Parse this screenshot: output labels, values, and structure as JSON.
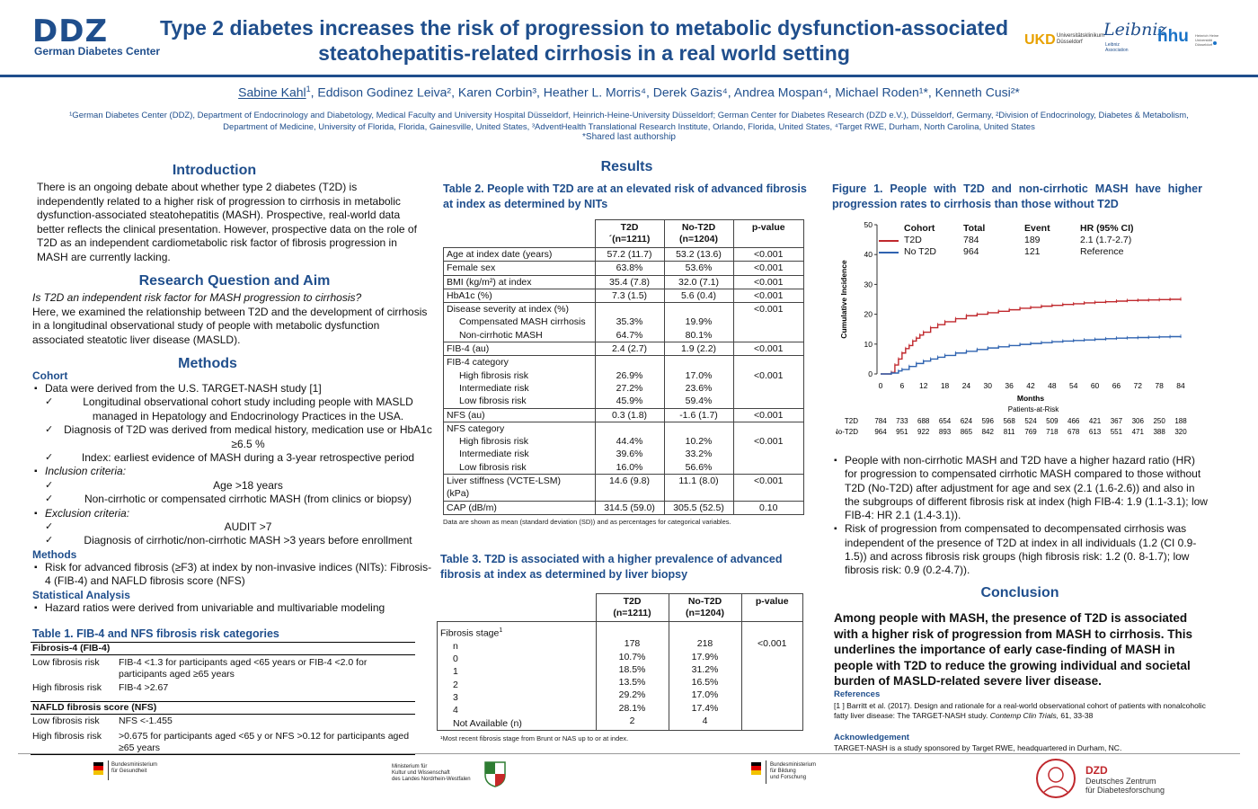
{
  "header": {
    "logo": "DDZ",
    "logo_sub": "German Diabetes Center",
    "title_line1": "Type 2 diabetes increases the risk of progression to metabolic dysfunction-associated",
    "title_line2": "steatohepatitis-related cirrhosis in a real world setting",
    "ukd": "UKD",
    "ukd_sub1": "Universitätsklinikum",
    "ukd_sub2": "Düsseldorf",
    "leibniz": "Leibniz",
    "leibniz_sub1": "Leibniz",
    "leibniz_sub2": "Association",
    "hhu": "hhu",
    "hhu_sub1": "Heinrich Heine",
    "hhu_sub2": "Universität",
    "hhu_sub3": "Düsseldorf",
    "authors_first": "Sabine Kahl",
    "authors_rest": ", Eddison Godinez Leiva², Karen Corbin³, Heather L. Morris⁴, Derek Gazis⁴, Andrea Mospan⁴, Michael Roden¹*, Kenneth Cusi²*",
    "authors_first_sup": "1",
    "affil_line1": "¹German Diabetes Center (DDZ), Department of Endocrinology and Diabetology, Medical Faculty and University Hospital Düsseldorf, Heinrich-Heine-University Düsseldorf; German Center for Diabetes Research (DZD e.V.), Düsseldorf, Germany, ²Division of Endocrinology, Diabetes & Metabolism,",
    "affil_line2": "Department of Medicine, University of Florida, Florida, Gainesville, United States, ³AdventHealth Translational Research Institute, Orlando, Florida, United States, ⁴Target RWE, Durham, North Carolina, United States",
    "shared": "*Shared last authorship"
  },
  "intro": {
    "heading": "Introduction",
    "text": "There is an ongoing debate about whether type 2 diabetes (T2D) is independently related to a higher risk of progression to cirrhosis in metabolic dysfunction-associated steatohepatitis (MASH). Prospective, real-world data better reflects the clinical presentation. However, prospective data on the role of T2D as an independent cardiometabolic risk factor of fibrosis progression in MASH are currently lacking."
  },
  "rq": {
    "heading": "Research Question and Aim",
    "question": "Is T2D an independent risk factor for MASH progression to cirrhosis?",
    "text": "Here, we examined the relationship between T2D and the development of cirrhosis in a longitudinal observational study of people with metabolic dysfunction associated steatotic liver disease (MASLD)."
  },
  "methods": {
    "heading": "Methods",
    "cohort_title": "Cohort",
    "cohort_b1": "Data were derived from the U.S. TARGET-NASH study [1]",
    "cohort_c1": "Longitudinal observational cohort study including people with MASLD managed in Hepatology and Endocrinology Practices in the USA.",
    "cohort_c2": "Diagnosis of T2D was derived from medical history, medication use or HbA1c ≥6.5 %",
    "cohort_c3": "Index: earliest evidence of MASH during a 3-year retrospective period",
    "inclusion": "Inclusion criteria:",
    "inc_c1": "Age >18 years",
    "inc_c2": "Non-cirrhotic or compensated cirrhotic MASH (from clinics or biopsy)",
    "exclusion": "Exclusion criteria:",
    "exc_c1": "AUDIT >7",
    "exc_c2": "Diagnosis of cirrhotic/non-cirrhotic MASH >3 years before enrollment",
    "methods_title": "Methods",
    "methods_b1": "Risk for advanced fibrosis (≥F3) at index by non-invasive indices  (NITs): Fibrosis-4 (FIB-4) and NAFLD fibrosis score (NFS)",
    "stat_title": "Statistical Analysis",
    "stat_b1": "Hazard ratios were derived from univariable and multivariable modeling"
  },
  "table1": {
    "caption": "Table 1. FIB-4 and NFS fibrosis risk categories",
    "fib4_head": "Fibrosis-4 (FIB-4)",
    "fib4_low_l": "Low fibrosis risk",
    "fib4_low_v": "FIB-4 <1.3 for participants aged <65 years or FIB-4 <2.0 for participants aged ≥65 years",
    "fib4_high_l": "High fibrosis risk",
    "fib4_high_v": "FIB-4 >2.67",
    "nfs_head": "NAFLD fibrosis score (NFS)",
    "nfs_low_l": "Low fibrosis risk",
    "nfs_low_v": "NFS <-1.455",
    "nfs_high_l": "High fibrosis risk",
    "nfs_high_v": ">0.675 for participants aged <65 y or NFS >0.12 for participants aged ≥65 years"
  },
  "results": {
    "heading": "Results"
  },
  "table2": {
    "caption": "Table 2. People with T2D are at an elevated risk of advanced fibrosis at index as determined by NITs",
    "h_t2d": "T2D",
    "h_t2d_n": "´(n=1211)",
    "h_no": "No-T2D",
    "h_no_n": "(n=1204)",
    "h_p": "p-value",
    "rows": [
      {
        "label": "Age at index date (years)",
        "a": "57.2 (11.7)",
        "b": "53.2 (13.6)",
        "p": "<0.001",
        "ind": false
      },
      {
        "label": "Female sex",
        "a": "63.8%",
        "b": "53.6%",
        "p": "<0.001",
        "ind": false
      },
      {
        "label": "BMI (kg/m²) at index",
        "a": "35.4 (7.8)",
        "b": "32.0 (7.1)",
        "p": "<0.001",
        "ind": false
      },
      {
        "label": "HbA1c (%)",
        "a": "7.3 (1.5)",
        "b": "5.6 (0.4)",
        "p": "<0.001",
        "ind": false
      }
    ],
    "sev_label": "Disease severity at index (%)",
    "sev_p": "<0.001",
    "sev_r1_l": "Compensated MASH cirrhosis",
    "sev_r1_a": "35.3%",
    "sev_r1_b": "19.9%",
    "sev_r2_l": "Non-cirrhotic MASH",
    "sev_r2_a": "64.7%",
    "sev_r2_b": "80.1%",
    "fib4_l": "FIB-4 (au)",
    "fib4_a": "2.4 (2.7)",
    "fib4_b": "1.9 (2.2)",
    "fib4_p": "<0.001",
    "fib4cat_l": "FIB-4 category",
    "fib4cat_p": "<0.001",
    "fib4cat_r1_l": "High fibrosis risk",
    "fib4cat_r1_a": "26.9%",
    "fib4cat_r1_b": "17.0%",
    "fib4cat_r2_l": "Intermediate risk",
    "fib4cat_r2_a": "27.2%",
    "fib4cat_r2_b": "23.6%",
    "fib4cat_r3_l": "Low fibrosis risk",
    "fib4cat_r3_a": "45.9%",
    "fib4cat_r3_b": "59.4%",
    "nfs_l": "NFS (au)",
    "nfs_a": "0.3 (1.8)",
    "nfs_b": "-1.6 (1.7)",
    "nfs_p": "<0.001",
    "nfscat_l": "NFS category",
    "nfscat_p": "<0.001",
    "nfscat_r1_l": "High fibrosis risk",
    "nfscat_r1_a": "44.4%",
    "nfscat_r1_b": "10.2%",
    "nfscat_r2_l": "Intermediate risk",
    "nfscat_r2_a": "39.6%",
    "nfscat_r2_b": "33.2%",
    "nfscat_r3_l": "Low fibrosis risk",
    "nfscat_r3_a": "16.0%",
    "nfscat_r3_b": "56.6%",
    "lsm_l1": "Liver stiffness (VCTE-LSM)",
    "lsm_l2": "(kPa)",
    "lsm_a": "14.6 (9.8)",
    "lsm_b": "11.1 (8.0)",
    "lsm_p": "<0.001",
    "cap_l": "CAP (dB/m)",
    "cap_a": "314.5 (59.0)",
    "cap_b": "305.5 (52.5)",
    "cap_p": "0.10",
    "note": "Data are shown as mean (standard deviation (SD)) and as percentages for categorical variables."
  },
  "table3": {
    "caption": "Table 3. T2D is associated with a higher prevalence of advanced fibrosis at index as determined by liver biopsy",
    "h_t2d": "T2D",
    "h_t2d_n": "(n=1211)",
    "h_no": "No-T2D",
    "h_no_n": "(n=1204)",
    "h_p": "p-value",
    "stage_label": "Fibrosis stage",
    "stage_sup": "1",
    "rows": [
      {
        "label": "n",
        "a": "178",
        "b": "218",
        "p": "<0.001"
      },
      {
        "label": "0",
        "a": "10.7%",
        "b": "17.9%",
        "p": ""
      },
      {
        "label": "1",
        "a": "18.5%",
        "b": "31.2%",
        "p": ""
      },
      {
        "label": "2",
        "a": "13.5%",
        "b": "16.5%",
        "p": ""
      },
      {
        "label": "3",
        "a": "29.2%",
        "b": "17.0%",
        "p": ""
      },
      {
        "label": "4",
        "a": "28.1%",
        "b": "17.4%",
        "p": ""
      },
      {
        "label": "Not Available (n)",
        "a": "2",
        "b": "4",
        "p": ""
      }
    ],
    "note": "¹Most recent fibrosis stage from Brunt or NAS up to or at index."
  },
  "figure1": {
    "caption": "Figure 1. People with T2D and non-cirrhotic MASH have higher progression rates to cirrhosis than those without T2D",
    "h_cohort": "Cohort",
    "h_total": "Total",
    "h_event": "Event",
    "h_hr": "HR (95% CI)",
    "r1_cohort": "T2D",
    "r1_total": "784",
    "r1_event": "189",
    "r1_hr": "2.1 (1.7-2.7)",
    "r2_cohort": "No T2D",
    "r2_total": "964",
    "r2_event": "121",
    "r2_hr": "Reference",
    "risk_title": "Patients-at-Risk",
    "risk_t2d_label": "T2D",
    "risk_no_label": "No-T2D",
    "risk_t2d": [
      "784",
      "733",
      "688",
      "654",
      "624",
      "596",
      "568",
      "524",
      "509",
      "466",
      "421",
      "367",
      "306",
      "250",
      "188"
    ],
    "risk_no": [
      "964",
      "951",
      "922",
      "893",
      "865",
      "842",
      "811",
      "769",
      "718",
      "678",
      "613",
      "551",
      "471",
      "388",
      "320"
    ]
  },
  "chart_data": {
    "type": "line",
    "xlabel": "Months",
    "ylabel": "Cumulative Incidence",
    "xlim": [
      0,
      84
    ],
    "ylim": [
      0,
      50
    ],
    "x_ticks": [
      0,
      6,
      12,
      18,
      24,
      30,
      36,
      42,
      48,
      54,
      60,
      66,
      72,
      78,
      84
    ],
    "y_ticks": [
      0,
      10,
      20,
      30,
      40,
      50
    ],
    "series": [
      {
        "name": "T2D",
        "color": "#c0282d",
        "points": [
          [
            0,
            0
          ],
          [
            1,
            0
          ],
          [
            2,
            0
          ],
          [
            3,
            0.5
          ],
          [
            4,
            3
          ],
          [
            5,
            5
          ],
          [
            6,
            7
          ],
          [
            7,
            8.5
          ],
          [
            8,
            9.5
          ],
          [
            9,
            11
          ],
          [
            10,
            12
          ],
          [
            11,
            13
          ],
          [
            12,
            14
          ],
          [
            14,
            15.5
          ],
          [
            16,
            16.5
          ],
          [
            18,
            17.5
          ],
          [
            21,
            18.5
          ],
          [
            24,
            19.5
          ],
          [
            27,
            20
          ],
          [
            30,
            20.5
          ],
          [
            33,
            21
          ],
          [
            36,
            21.5
          ],
          [
            39,
            22
          ],
          [
            42,
            22.3
          ],
          [
            45,
            22.7
          ],
          [
            48,
            23
          ],
          [
            51,
            23.3
          ],
          [
            54,
            23.5
          ],
          [
            57,
            23.8
          ],
          [
            60,
            24
          ],
          [
            63,
            24.2
          ],
          [
            66,
            24.4
          ],
          [
            69,
            24.6
          ],
          [
            72,
            24.7
          ],
          [
            75,
            24.8
          ],
          [
            78,
            24.9
          ],
          [
            81,
            25
          ],
          [
            84,
            25.1
          ]
        ]
      },
      {
        "name": "No T2D",
        "color": "#2f63b0",
        "points": [
          [
            0,
            0
          ],
          [
            1,
            0
          ],
          [
            2,
            0
          ],
          [
            3,
            0.3
          ],
          [
            5,
            1
          ],
          [
            6,
            1.5
          ],
          [
            8,
            2.5
          ],
          [
            10,
            3.5
          ],
          [
            12,
            4.3
          ],
          [
            14,
            5
          ],
          [
            16,
            5.6
          ],
          [
            18,
            6.2
          ],
          [
            21,
            7
          ],
          [
            24,
            7.6
          ],
          [
            27,
            8.2
          ],
          [
            30,
            8.7
          ],
          [
            33,
            9.1
          ],
          [
            36,
            9.5
          ],
          [
            39,
            9.9
          ],
          [
            42,
            10.2
          ],
          [
            45,
            10.5
          ],
          [
            48,
            10.8
          ],
          [
            51,
            11
          ],
          [
            54,
            11.2
          ],
          [
            57,
            11.4
          ],
          [
            60,
            11.6
          ],
          [
            63,
            11.8
          ],
          [
            66,
            12
          ],
          [
            69,
            12.1
          ],
          [
            72,
            12.2
          ],
          [
            75,
            12.3
          ],
          [
            78,
            12.4
          ],
          [
            81,
            12.5
          ],
          [
            84,
            12.6
          ]
        ]
      }
    ]
  },
  "findings": {
    "b1": "People with non-cirrhotic MASH and T2D have a higher hazard ratio (HR) for progression to compensated cirrhotic MASH compared to those without T2D (No-T2D) after adjustment for age and sex (2.1 (1.6-2.6)) and also in the subgroups of different fibrosis risk at index (high FIB-4: 1.9 (1.1-3.1); low FIB-4: HR 2.1 (1.4-3.1)).",
    "b2": "Risk of progression from compensated to decompensated cirrhosis was independent of the presence of T2D at index in all individuals (1.2 (CI 0.9-1.5)) and across fibrosis risk groups (high fibrosis risk: 1.2 (0. 8-1.7); low fibrosis risk: 0.9 (0.2-4.7))."
  },
  "conclusion": {
    "heading": "Conclusion",
    "text": "Among people with MASH, the presence of T2D is associated with a higher risk of progression from MASH to cirrhosis. This underlines the importance of early case-finding of MASH in people with T2D to reduce the growing individual and societal burden of MASLD-related severe liver disease.",
    "ref_title": "References",
    "ref_text": "[1 ] Barritt et al. (2017). Design and rationale for a real-world observational cohort of patients with nonalcoholic fatty liver disease: The TARGET-NASH study. ",
    "ref_journal": "Contemp Clin Trials,",
    "ref_tail": " 61, 33-38",
    "ack_title": "Acknowledgement",
    "ack_text": "TARGET-NASH is a study sponsored by Target RWE, headquartered in Durham, NC."
  },
  "footer": {
    "bmg1": "Bundesministerium",
    "bmg2": "für Gesundheit",
    "mkw1": "Ministerium für",
    "mkw2": "Kultur und Wissenschaft",
    "mkw3": "des Landes Nordrhein-Westfalen",
    "bmbf1": "Bundesministerium",
    "bmbf2": "für Bildung",
    "bmbf3": "und Forschung",
    "dzd": "DZD",
    "dzd2": "Deutsches Zentrum",
    "dzd3": "für Diabetesforschung"
  }
}
